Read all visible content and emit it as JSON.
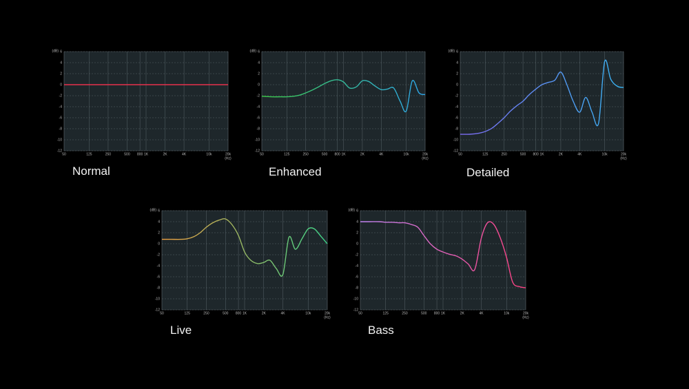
{
  "chart_data": [
    {
      "type": "line",
      "title": "Normal",
      "x_label": "(Hz)",
      "y_label": "(dB)",
      "xscale": "log",
      "grid": true,
      "xlim": [
        50,
        20000
      ],
      "xticks": [
        50,
        125,
        250,
        500,
        800,
        {
          "value": 1000,
          "label": "1K"
        },
        {
          "value": 2000,
          "label": "2K"
        },
        {
          "value": 4000,
          "label": "4K"
        },
        {
          "value": 10000,
          "label": "10k"
        },
        {
          "value": 20000,
          "label": "20k"
        }
      ],
      "ylim": [
        -12,
        6
      ],
      "yticks": [
        6,
        4,
        2,
        0,
        -2,
        -4,
        -6,
        -8,
        -10,
        -12
      ],
      "x": [
        50,
        20000
      ],
      "series": [
        {
          "color": [
            "#e8304c",
            "#e8304c"
          ],
          "values": [
            0,
            0
          ]
        }
      ]
    },
    {
      "type": "line",
      "title": "Enhanced",
      "x_label": "(Hz)",
      "y_label": "(dB)",
      "xscale": "log",
      "grid": true,
      "xlim": [
        50,
        20000
      ],
      "xticks": [
        50,
        125,
        250,
        500,
        800,
        {
          "value": 1000,
          "label": "1K"
        },
        {
          "value": 2000,
          "label": "2K"
        },
        {
          "value": 4000,
          "label": "4K"
        },
        {
          "value": 10000,
          "label": "10k"
        },
        {
          "value": 20000,
          "label": "20k"
        }
      ],
      "ylim": [
        -12,
        6
      ],
      "yticks": [
        6,
        4,
        2,
        0,
        -2,
        -4,
        -6,
        -8,
        -10,
        -12
      ],
      "x": [
        50,
        70,
        100,
        125,
        160,
        200,
        250,
        315,
        400,
        500,
        630,
        800,
        1000,
        1250,
        1600,
        2000,
        2500,
        3150,
        4000,
        5000,
        6300,
        8000,
        10000,
        12500,
        16000,
        20000
      ],
      "series": [
        {
          "color": [
            "#3ccc48",
            "#2ea8ee"
          ],
          "values": [
            -2.1,
            -2.2,
            -2.2,
            -2.2,
            -2.1,
            -1.9,
            -1.5,
            -1,
            -0.4,
            0.2,
            0.7,
            0.9,
            0.5,
            -0.6,
            -0.4,
            0.7,
            0.6,
            -0.2,
            -0.9,
            -0.8,
            -0.6,
            -3,
            -4.8,
            0.7,
            -1.5,
            -1.8
          ]
        }
      ]
    },
    {
      "type": "line",
      "title": "Detailed",
      "x_label": "(Hz)",
      "y_label": "(dB)",
      "xscale": "log",
      "grid": true,
      "xlim": [
        50,
        20000
      ],
      "xticks": [
        50,
        125,
        250,
        500,
        800,
        {
          "value": 1000,
          "label": "1K"
        },
        {
          "value": 2000,
          "label": "2K"
        },
        {
          "value": 4000,
          "label": "4K"
        },
        {
          "value": 10000,
          "label": "10k"
        },
        {
          "value": 20000,
          "label": "20k"
        }
      ],
      "ylim": [
        -12,
        6
      ],
      "yticks": [
        6,
        4,
        2,
        0,
        -2,
        -4,
        -6,
        -8,
        -10,
        -12
      ],
      "x": [
        50,
        70,
        100,
        125,
        160,
        200,
        250,
        315,
        400,
        500,
        630,
        800,
        1000,
        1250,
        1600,
        2000,
        2500,
        3150,
        4000,
        5000,
        6300,
        8000,
        10000,
        12500,
        16000,
        20000
      ],
      "series": [
        {
          "color": [
            "#7d6af2",
            "#38b4f2"
          ],
          "values": [
            -9,
            -9,
            -8.8,
            -8.5,
            -7.9,
            -7,
            -6,
            -4.8,
            -3.8,
            -3,
            -1.8,
            -0.8,
            0,
            0.4,
            0.8,
            2.3,
            0,
            -3,
            -5,
            -2.3,
            -5,
            -7,
            4.2,
            1,
            -0.3,
            -0.5
          ]
        }
      ]
    },
    {
      "type": "line",
      "title": "Live",
      "x_label": "(Hz)",
      "y_label": "(dB)",
      "xscale": "log",
      "grid": true,
      "xlim": [
        50,
        20000
      ],
      "xticks": [
        50,
        125,
        250,
        500,
        800,
        {
          "value": 1000,
          "label": "1K"
        },
        {
          "value": 2000,
          "label": "2K"
        },
        {
          "value": 4000,
          "label": "4K"
        },
        {
          "value": 10000,
          "label": "10k"
        },
        {
          "value": 20000,
          "label": "20k"
        }
      ],
      "ylim": [
        -12,
        6
      ],
      "yticks": [
        6,
        4,
        2,
        0,
        -2,
        -4,
        -6,
        -8,
        -10,
        -12
      ],
      "x": [
        50,
        70,
        100,
        125,
        160,
        200,
        250,
        315,
        400,
        500,
        630,
        800,
        1000,
        1250,
        1600,
        2000,
        2500,
        3150,
        4000,
        5000,
        6300,
        8000,
        10000,
        12500,
        16000,
        20000
      ],
      "series": [
        {
          "color": [
            "#f0a040",
            "#3ed68a"
          ],
          "values": [
            0.8,
            0.8,
            0.8,
            0.9,
            1.3,
            2,
            3,
            3.8,
            4.3,
            4.5,
            3.5,
            1.5,
            -1.5,
            -3,
            -3.6,
            -3.4,
            -3,
            -4.5,
            -5.6,
            1.2,
            -1,
            0.9,
            2.7,
            2.7,
            1.3,
            0
          ]
        }
      ]
    },
    {
      "type": "line",
      "title": "Bass",
      "x_label": "(Hz)",
      "y_label": "(dB)",
      "xscale": "log",
      "grid": true,
      "xlim": [
        50,
        20000
      ],
      "xticks": [
        50,
        125,
        250,
        500,
        800,
        {
          "value": 1000,
          "label": "1K"
        },
        {
          "value": 2000,
          "label": "2K"
        },
        {
          "value": 4000,
          "label": "4K"
        },
        {
          "value": 10000,
          "label": "10k"
        },
        {
          "value": 20000,
          "label": "20k"
        }
      ],
      "ylim": [
        -12,
        6
      ],
      "yticks": [
        6,
        4,
        2,
        0,
        -2,
        -4,
        -6,
        -8,
        -10,
        -12
      ],
      "x": [
        50,
        70,
        100,
        125,
        160,
        200,
        250,
        315,
        400,
        500,
        630,
        800,
        1000,
        1250,
        1600,
        2000,
        2500,
        3150,
        4000,
        5000,
        6300,
        8000,
        10000,
        12500,
        16000,
        20000
      ],
      "series": [
        {
          "color": [
            "#c084f2",
            "#ff3f80"
          ],
          "values": [
            4,
            4,
            4,
            3.9,
            3.9,
            3.8,
            3.8,
            3.5,
            3,
            1.5,
            0,
            -1,
            -1.5,
            -1.9,
            -2.2,
            -2.8,
            -3.7,
            -4.7,
            1,
            3.8,
            3.5,
            1,
            -2.5,
            -7,
            -7.8,
            -8
          ]
        }
      ]
    }
  ]
}
